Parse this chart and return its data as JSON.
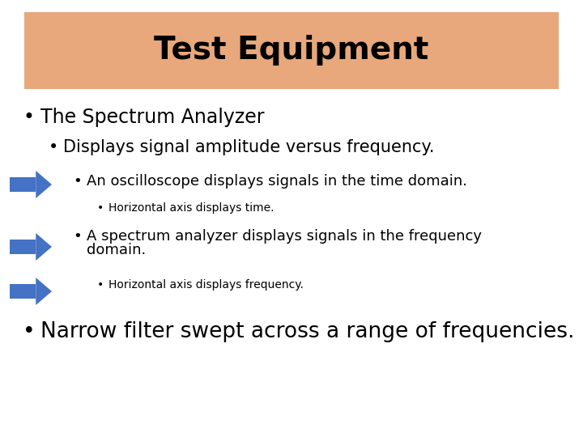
{
  "title": "Test Equipment",
  "title_bg_color": "#E8A87C",
  "title_font_size": 28,
  "title_font_weight": "bold",
  "bg_color": "#FFFFFF",
  "text_color": "#000000",
  "arrow_color": "#4472C4",
  "bullet1": "The Spectrum Analyzer",
  "bullet2": "Displays signal amplitude versus frequency.",
  "bullet3": "An oscilloscope displays signals in the time domain.",
  "bullet4": "Horizontal axis displays time.",
  "bullet5_line1": "A spectrum analyzer displays signals in the frequency",
  "bullet5_line2": "domain.",
  "bullet6": "Horizontal axis displays frequency.",
  "bullet7": "Narrow filter swept across a range of frequencies.",
  "fig_width": 7.2,
  "fig_height": 5.4,
  "dpi": 100
}
